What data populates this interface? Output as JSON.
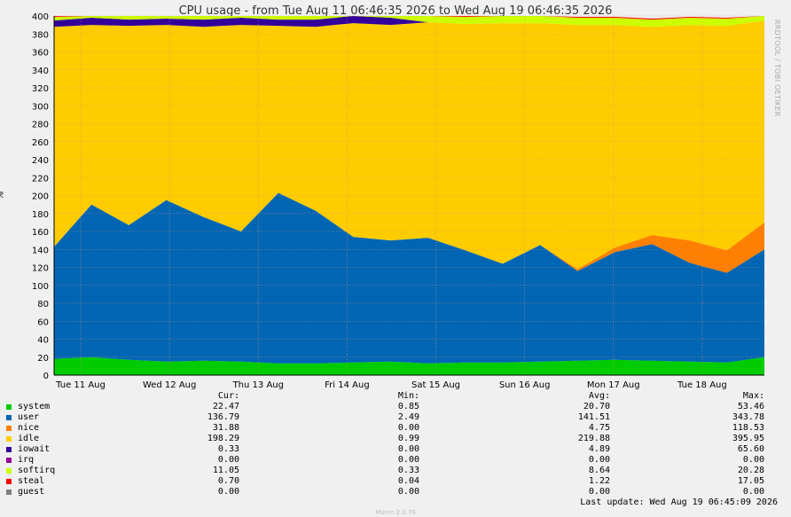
{
  "chart_data": {
    "type": "area",
    "title": "CPU usage - from Tue Aug 11 06:46:35 2026 to Wed Aug 19 06:46:35 2026",
    "ylabel": "%",
    "ylim": [
      0,
      400
    ],
    "yticks": [
      0,
      20,
      40,
      60,
      80,
      100,
      120,
      140,
      160,
      180,
      200,
      220,
      240,
      260,
      280,
      300,
      320,
      340,
      360,
      380,
      400
    ],
    "xticks": [
      "Tue 11 Aug",
      "Wed 12 Aug",
      "Thu 13 Aug",
      "Fri 14 Aug",
      "Sat 15 Aug",
      "Sun 16 Aug",
      "Mon 17 Aug",
      "Tue 18 Aug"
    ],
    "stacked": true,
    "grid": true,
    "series_order": [
      "system",
      "user",
      "nice",
      "idle",
      "iowait",
      "irq",
      "softirq",
      "steal",
      "guest"
    ],
    "series": [
      {
        "name": "system",
        "color": "#00cc00",
        "approx_values": [
          18,
          20,
          17,
          15,
          16,
          15,
          13,
          13,
          14,
          15,
          13,
          14,
          14,
          15,
          16,
          17,
          16,
          15,
          14,
          20
        ]
      },
      {
        "name": "user",
        "color": "#0066b3",
        "approx_values": [
          125,
          170,
          150,
          180,
          160,
          145,
          190,
          170,
          140,
          135,
          140,
          125,
          110,
          130,
          100,
          120,
          130,
          110,
          100,
          120
        ]
      },
      {
        "name": "nice",
        "color": "#ff8000",
        "approx_values": [
          0,
          0,
          0,
          0,
          0,
          0,
          0,
          0,
          0,
          0,
          0,
          0,
          0,
          0,
          2,
          5,
          10,
          25,
          25,
          30
        ]
      },
      {
        "name": "idle",
        "color": "#ffcc00",
        "approx_values": [
          245,
          200,
          222,
          195,
          212,
          230,
          186,
          205,
          238,
          240,
          240,
          252,
          268,
          247,
          272,
          248,
          232,
          240,
          250,
          225
        ]
      },
      {
        "name": "iowait",
        "color": "#330099",
        "approx_values": [
          7,
          8,
          7,
          7,
          8,
          8,
          7,
          8,
          8,
          8,
          0,
          0,
          0,
          0,
          0,
          0,
          0,
          0,
          0,
          0
        ]
      },
      {
        "name": "irq",
        "color": "#990099",
        "approx_values": [
          0,
          0,
          0,
          0,
          0,
          0,
          0,
          0,
          0,
          0,
          0,
          0,
          0,
          0,
          0,
          0,
          0,
          0,
          0,
          0
        ]
      },
      {
        "name": "softirq",
        "color": "#ccff00",
        "approx_values": [
          4,
          4,
          4,
          4,
          4,
          4,
          4,
          4,
          4,
          4,
          8,
          8,
          8,
          8,
          8,
          8,
          8,
          8,
          8,
          8
        ]
      },
      {
        "name": "steal",
        "color": "#ff0000",
        "approx_values": [
          1,
          1,
          1,
          1,
          1,
          1,
          1,
          1,
          1,
          1,
          1,
          1,
          1,
          1,
          1,
          1,
          1,
          1,
          1,
          1
        ]
      },
      {
        "name": "guest",
        "color": "#808080",
        "approx_values": [
          0,
          0,
          0,
          0,
          0,
          0,
          0,
          0,
          0,
          0,
          0,
          0,
          0,
          0,
          0,
          0,
          0,
          0,
          0,
          0
        ]
      }
    ]
  },
  "legend": {
    "headers": {
      "cur": "Cur:",
      "min": "Min:",
      "avg": "Avg:",
      "max": "Max:"
    },
    "rows": [
      {
        "name": "system",
        "color": "#00cc00",
        "cur": "22.47",
        "min": "0.85",
        "avg": "20.70",
        "max": "53.46"
      },
      {
        "name": "user",
        "color": "#0066b3",
        "cur": "136.79",
        "min": "2.49",
        "avg": "141.51",
        "max": "343.78"
      },
      {
        "name": "nice",
        "color": "#ff8000",
        "cur": "31.88",
        "min": "0.00",
        "avg": "4.75",
        "max": "118.53"
      },
      {
        "name": "idle",
        "color": "#ffcc00",
        "cur": "198.29",
        "min": "0.99",
        "avg": "219.88",
        "max": "395.95"
      },
      {
        "name": "iowait",
        "color": "#330099",
        "cur": "0.33",
        "min": "0.00",
        "avg": "4.89",
        "max": "65.60"
      },
      {
        "name": "irq",
        "color": "#990099",
        "cur": "0.00",
        "min": "0.00",
        "avg": "0.00",
        "max": "0.00"
      },
      {
        "name": "softirq",
        "color": "#ccff00",
        "cur": "11.05",
        "min": "0.33",
        "avg": "8.64",
        "max": "20.28"
      },
      {
        "name": "steal",
        "color": "#ff0000",
        "cur": "0.70",
        "min": "0.04",
        "avg": "1.22",
        "max": "17.05"
      },
      {
        "name": "guest",
        "color": "#808080",
        "cur": "0.00",
        "min": "0.00",
        "avg": "0.00",
        "max": "0.00"
      }
    ]
  },
  "footer": {
    "last_update": "Last update: Wed Aug 19 06:45:09 2026",
    "version": "Munin 2.0.76"
  },
  "side_text": "RRDTOOL / TOBI OETIKER"
}
